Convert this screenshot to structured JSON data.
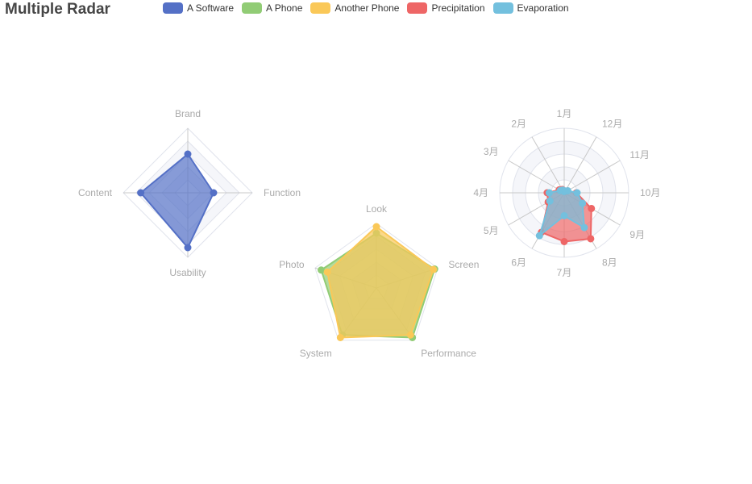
{
  "title": "Multiple Radar",
  "legend": [
    {
      "name": "A Software",
      "color": "#5470c6"
    },
    {
      "name": "A Phone",
      "color": "#91cc75"
    },
    {
      "name": "Another Phone",
      "color": "#fac858"
    },
    {
      "name": "Precipitation",
      "color": "#ee6666"
    },
    {
      "name": "Evaporation",
      "color": "#73c0de"
    }
  ],
  "chart_data": [
    {
      "type": "radar",
      "indicators": [
        {
          "name": "Brand",
          "max": 100
        },
        {
          "name": "Content",
          "max": 100
        },
        {
          "name": "Usability",
          "max": 100
        },
        {
          "name": "Function",
          "max": 100
        }
      ],
      "series": [
        {
          "name": "A Software",
          "values": [
            60,
            73,
            85,
            40
          ],
          "color": "#5470c6"
        }
      ]
    },
    {
      "type": "radar",
      "indicators": [
        {
          "name": "Look",
          "max": 100
        },
        {
          "name": "Photo",
          "max": 100
        },
        {
          "name": "System",
          "max": 100
        },
        {
          "name": "Performance",
          "max": 100
        },
        {
          "name": "Screen",
          "max": 100
        }
      ],
      "series": [
        {
          "name": "A Phone",
          "values": [
            85,
            90,
            90,
            95,
            95
          ],
          "color": "#91cc75"
        },
        {
          "name": "Another Phone",
          "values": [
            95,
            80,
            95,
            90,
            93
          ],
          "color": "#fac858"
        }
      ]
    },
    {
      "type": "radar",
      "indicators": [
        {
          "name": "1月",
          "max": 100
        },
        {
          "name": "2月",
          "max": 100
        },
        {
          "name": "3月",
          "max": 100
        },
        {
          "name": "4月",
          "max": 100
        },
        {
          "name": "5月",
          "max": 100
        },
        {
          "name": "6月",
          "max": 100
        },
        {
          "name": "7月",
          "max": 100
        },
        {
          "name": "8月",
          "max": 100
        },
        {
          "name": "9月",
          "max": 100
        },
        {
          "name": "10月",
          "max": 100
        },
        {
          "name": "11月",
          "max": 100
        },
        {
          "name": "12月",
          "max": 100
        }
      ],
      "series": [
        {
          "name": "Precipitation",
          "values": [
            2.6,
            5.9,
            9.0,
            26.4,
            28.7,
            70.7,
            75.6,
            82.2,
            48.7,
            18.8,
            6.0,
            2.3
          ],
          "color": "#ee6666"
        },
        {
          "name": "Evaporation",
          "values": [
            2.0,
            4.9,
            7.0,
            23.2,
            25.6,
            76.7,
            35.6,
            62.2,
            32.6,
            20.0,
            6.4,
            3.3
          ],
          "color": "#73c0de"
        }
      ]
    }
  ]
}
